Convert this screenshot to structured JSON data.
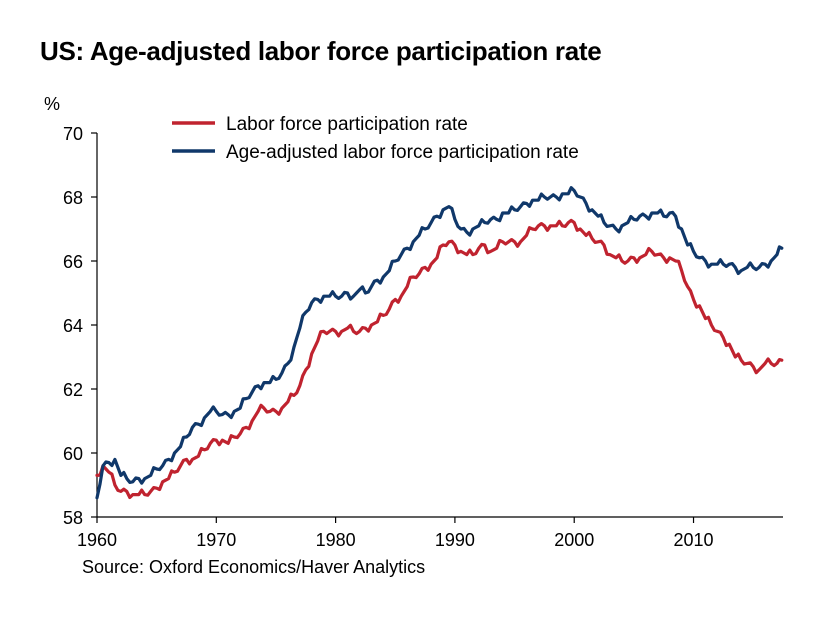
{
  "title": "US: Age-adjusted labor force participation rate",
  "source": "Source: Oxford Economics/Haver Analytics",
  "colors": {
    "lfpr": "#c0232f",
    "age_adjusted": "#10386a"
  },
  "chart_data": {
    "type": "line",
    "title": "US: Age-adjusted labor force participation rate",
    "ylabel": "%",
    "xlabel": "",
    "xlim": [
      1960,
      2017.5
    ],
    "ylim": [
      58,
      70
    ],
    "xticks": [
      "1960",
      "1970",
      "1980",
      "1990",
      "2000",
      "2010"
    ],
    "yticks": [
      "58",
      "60",
      "62",
      "64",
      "66",
      "68",
      "70"
    ],
    "grid": false,
    "legend": "top-center",
    "series": [
      {
        "name": "Labor force participation rate",
        "x": [
          1960.0,
          1960.5,
          1961.0,
          1961.5,
          1962.0,
          1962.5,
          1963.0,
          1963.5,
          1964.0,
          1964.5,
          1965.0,
          1965.5,
          1966.0,
          1966.5,
          1967.0,
          1967.5,
          1968.0,
          1968.5,
          1969.0,
          1969.5,
          1970.0,
          1970.5,
          1971.0,
          1971.5,
          1972.0,
          1972.5,
          1973.0,
          1973.5,
          1974.0,
          1974.5,
          1975.0,
          1975.5,
          1976.0,
          1976.5,
          1977.0,
          1977.5,
          1978.0,
          1978.5,
          1979.0,
          1979.5,
          1980.0,
          1980.5,
          1981.0,
          1981.5,
          1982.0,
          1982.5,
          1983.0,
          1983.5,
          1984.0,
          1984.5,
          1985.0,
          1985.5,
          1986.0,
          1986.5,
          1987.0,
          1987.5,
          1988.0,
          1988.5,
          1989.0,
          1989.5,
          1990.0,
          1990.5,
          1991.0,
          1991.5,
          1992.0,
          1992.5,
          1993.0,
          1993.5,
          1994.0,
          1994.5,
          1995.0,
          1995.5,
          1996.0,
          1996.5,
          1997.0,
          1997.5,
          1998.0,
          1998.5,
          1999.0,
          1999.5,
          2000.0,
          2000.5,
          2001.0,
          2001.5,
          2002.0,
          2002.5,
          2003.0,
          2003.5,
          2004.0,
          2004.5,
          2005.0,
          2005.5,
          2006.0,
          2006.5,
          2007.0,
          2007.5,
          2008.0,
          2008.5,
          2009.0,
          2009.5,
          2010.0,
          2010.5,
          2011.0,
          2011.5,
          2012.0,
          2012.5,
          2013.0,
          2013.5,
          2014.0,
          2014.5,
          2015.0,
          2015.5,
          2016.0,
          2016.5,
          2017.0,
          2017.4
        ],
        "y": [
          59.3,
          59.6,
          59.4,
          59.0,
          58.8,
          58.8,
          58.7,
          58.7,
          58.7,
          58.8,
          58.9,
          59.1,
          59.2,
          59.4,
          59.6,
          59.8,
          59.8,
          59.9,
          60.1,
          60.3,
          60.4,
          60.4,
          60.3,
          60.5,
          60.6,
          60.8,
          61.0,
          61.3,
          61.4,
          61.3,
          61.3,
          61.4,
          61.6,
          61.8,
          62.1,
          62.6,
          63.1,
          63.5,
          63.8,
          63.8,
          63.8,
          63.8,
          63.9,
          63.8,
          63.8,
          63.9,
          64.0,
          64.1,
          64.3,
          64.5,
          64.8,
          64.9,
          65.2,
          65.5,
          65.6,
          65.8,
          65.9,
          66.1,
          66.5,
          66.6,
          66.5,
          66.3,
          66.2,
          66.2,
          66.4,
          66.5,
          66.3,
          66.4,
          66.6,
          66.6,
          66.6,
          66.6,
          66.8,
          67.0,
          67.1,
          67.1,
          67.1,
          67.1,
          67.1,
          67.2,
          67.2,
          67.0,
          66.8,
          66.7,
          66.6,
          66.5,
          66.2,
          66.1,
          66.0,
          66.0,
          66.1,
          66.1,
          66.2,
          66.3,
          66.2,
          66.1,
          66.1,
          66.0,
          65.7,
          65.2,
          64.8,
          64.6,
          64.2,
          64.0,
          63.8,
          63.6,
          63.4,
          63.0,
          62.9,
          62.8,
          62.7,
          62.6,
          62.8,
          62.8,
          62.8,
          62.9
        ]
      },
      {
        "name": "Age-adjusted labor force participation rate",
        "x": [
          1960.0,
          1960.5,
          1961.0,
          1961.5,
          1962.0,
          1962.5,
          1963.0,
          1963.5,
          1964.0,
          1964.5,
          1965.0,
          1965.5,
          1966.0,
          1966.5,
          1967.0,
          1967.5,
          1968.0,
          1968.5,
          1969.0,
          1969.5,
          1970.0,
          1970.5,
          1971.0,
          1971.5,
          1972.0,
          1972.5,
          1973.0,
          1973.5,
          1974.0,
          1974.5,
          1975.0,
          1975.5,
          1976.0,
          1976.5,
          1977.0,
          1977.5,
          1978.0,
          1978.5,
          1979.0,
          1979.5,
          1980.0,
          1980.5,
          1981.0,
          1981.5,
          1982.0,
          1982.5,
          1983.0,
          1983.5,
          1984.0,
          1984.5,
          1985.0,
          1985.5,
          1986.0,
          1986.5,
          1987.0,
          1987.5,
          1988.0,
          1988.5,
          1989.0,
          1989.5,
          1990.0,
          1990.5,
          1991.0,
          1991.5,
          1992.0,
          1992.5,
          1993.0,
          1993.5,
          1994.0,
          1994.5,
          1995.0,
          1995.5,
          1996.0,
          1996.5,
          1997.0,
          1997.5,
          1998.0,
          1998.5,
          1999.0,
          1999.5,
          2000.0,
          2000.5,
          2001.0,
          2001.5,
          2002.0,
          2002.5,
          2003.0,
          2003.5,
          2004.0,
          2004.5,
          2005.0,
          2005.5,
          2006.0,
          2006.5,
          2007.0,
          2007.5,
          2008.0,
          2008.5,
          2009.0,
          2009.5,
          2010.0,
          2010.5,
          2011.0,
          2011.5,
          2012.0,
          2012.5,
          2013.0,
          2013.5,
          2014.0,
          2014.5,
          2015.0,
          2015.5,
          2016.0,
          2016.5,
          2017.0,
          2017.4
        ],
        "y": [
          58.6,
          59.6,
          59.7,
          59.8,
          59.3,
          59.2,
          59.1,
          59.2,
          59.2,
          59.3,
          59.5,
          59.6,
          59.8,
          60.0,
          60.2,
          60.5,
          60.8,
          60.9,
          61.1,
          61.3,
          61.3,
          61.2,
          61.2,
          61.3,
          61.4,
          61.7,
          61.9,
          62.1,
          62.2,
          62.2,
          62.3,
          62.5,
          62.8,
          63.3,
          63.9,
          64.4,
          64.7,
          64.8,
          64.9,
          64.9,
          64.9,
          64.9,
          65.0,
          64.9,
          65.1,
          65.0,
          65.2,
          65.4,
          65.5,
          65.7,
          66.0,
          66.2,
          66.4,
          66.6,
          66.8,
          67.0,
          67.2,
          67.4,
          67.6,
          67.7,
          67.3,
          67.0,
          66.9,
          67.0,
          67.1,
          67.2,
          67.3,
          67.3,
          67.5,
          67.5,
          67.6,
          67.7,
          67.8,
          67.9,
          67.9,
          68.0,
          68.0,
          68.0,
          68.1,
          68.1,
          68.2,
          68.0,
          67.8,
          67.6,
          67.4,
          67.2,
          67.1,
          67.0,
          67.1,
          67.2,
          67.3,
          67.4,
          67.4,
          67.5,
          67.5,
          67.4,
          67.5,
          67.4,
          67.0,
          66.5,
          66.3,
          66.1,
          66.0,
          65.9,
          65.9,
          65.9,
          65.9,
          65.8,
          65.7,
          65.8,
          65.8,
          65.8,
          65.9,
          66.0,
          66.2,
          66.4
        ]
      }
    ]
  }
}
